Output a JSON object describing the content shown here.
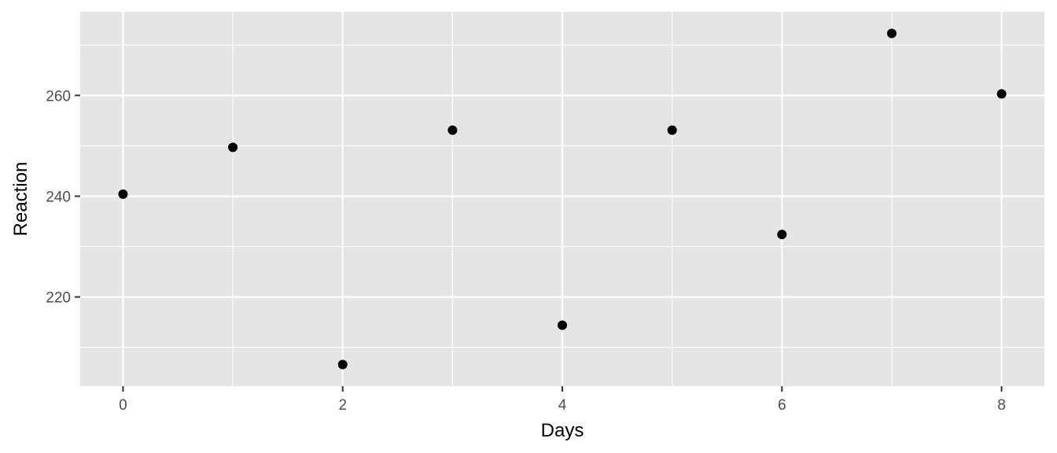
{
  "chart_data": {
    "type": "scatter",
    "title": "",
    "xlabel": "Days",
    "ylabel": "Reaction",
    "x": [
      0,
      1,
      2,
      3,
      4,
      5,
      6,
      7,
      8
    ],
    "y": [
      240.4,
      249.7,
      206.6,
      253.1,
      214.4,
      253.1,
      232.4,
      272.3,
      260.3
    ],
    "xlim": [
      -0.39,
      8.39
    ],
    "ylim": [
      202.3,
      276.6
    ],
    "x_ticks": [
      0,
      2,
      4,
      6,
      8
    ],
    "x_tick_labels": [
      "0",
      "2",
      "4",
      "6",
      "8"
    ],
    "y_ticks": [
      220,
      240,
      260
    ],
    "y_tick_labels": [
      "220",
      "240",
      "260"
    ],
    "x_minor_ticks": [
      1,
      3,
      5,
      7
    ],
    "y_minor_ticks": [
      210,
      230,
      250,
      270
    ],
    "grid": true,
    "legend": "none",
    "colors": {
      "panel_background": "#e5e5e5",
      "grid_line": "#ffffff",
      "point": "#000000",
      "tick_label": "#4d4d4d",
      "tick_mark": "#333333",
      "axis_title": "#000000"
    }
  }
}
